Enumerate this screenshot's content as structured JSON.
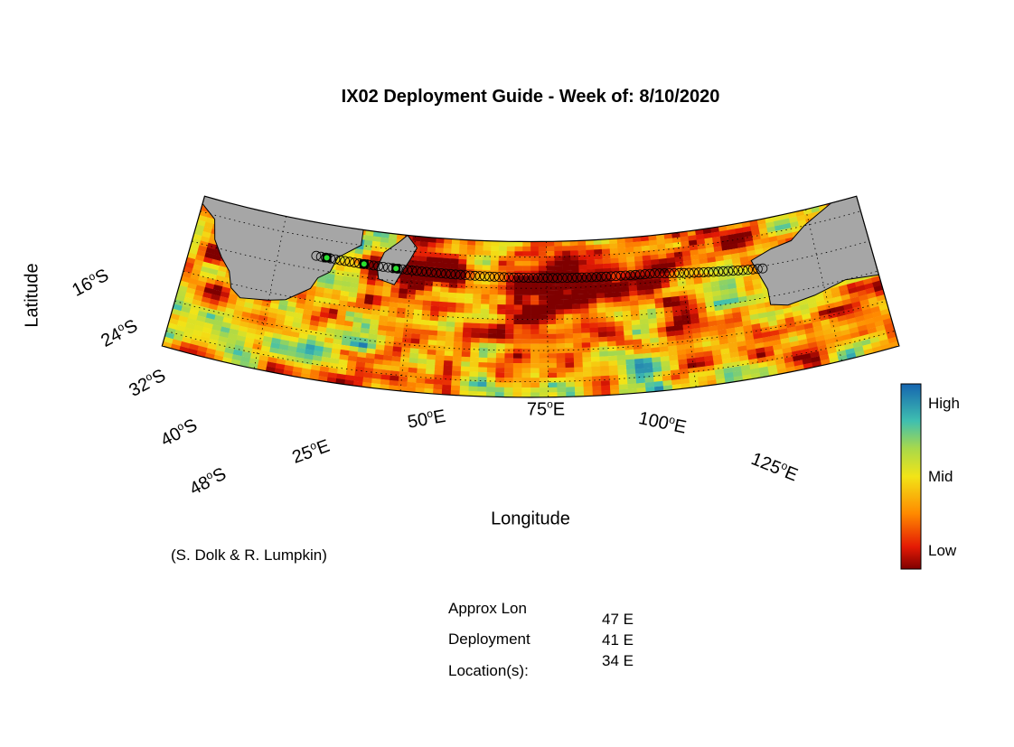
{
  "title": "IX02 Deployment Guide - Week of: 8/10/2020",
  "xlabel": "Longitude",
  "ylabel": "Latitude",
  "credit": "(S. Dolk & R. Lumpkin)",
  "lat_ticks": [
    {
      "deg": "16",
      "hem": "S"
    },
    {
      "deg": "24",
      "hem": "S"
    },
    {
      "deg": "32",
      "hem": "S"
    },
    {
      "deg": "40",
      "hem": "S"
    },
    {
      "deg": "48",
      "hem": "S"
    }
  ],
  "lon_ticks": [
    {
      "deg": "25",
      "hem": "E"
    },
    {
      "deg": "50",
      "hem": "E"
    },
    {
      "deg": "75",
      "hem": "E"
    },
    {
      "deg": "100",
      "hem": "E"
    },
    {
      "deg": "125",
      "hem": "E"
    }
  ],
  "colorbar": {
    "high": "High",
    "mid": "Mid",
    "low": "Low"
  },
  "deployment": {
    "label_line1": "Approx Lon",
    "label_line2": "Deployment",
    "label_line3": "Location(s):",
    "locations": [
      "47 E",
      "41 E",
      "34 E"
    ]
  },
  "colors": {
    "land": "#a6a6a6",
    "high": "#1f6fb3",
    "mid": "#f2e417",
    "low": "#7f0000",
    "deployment_marker": "#29e02f"
  }
}
